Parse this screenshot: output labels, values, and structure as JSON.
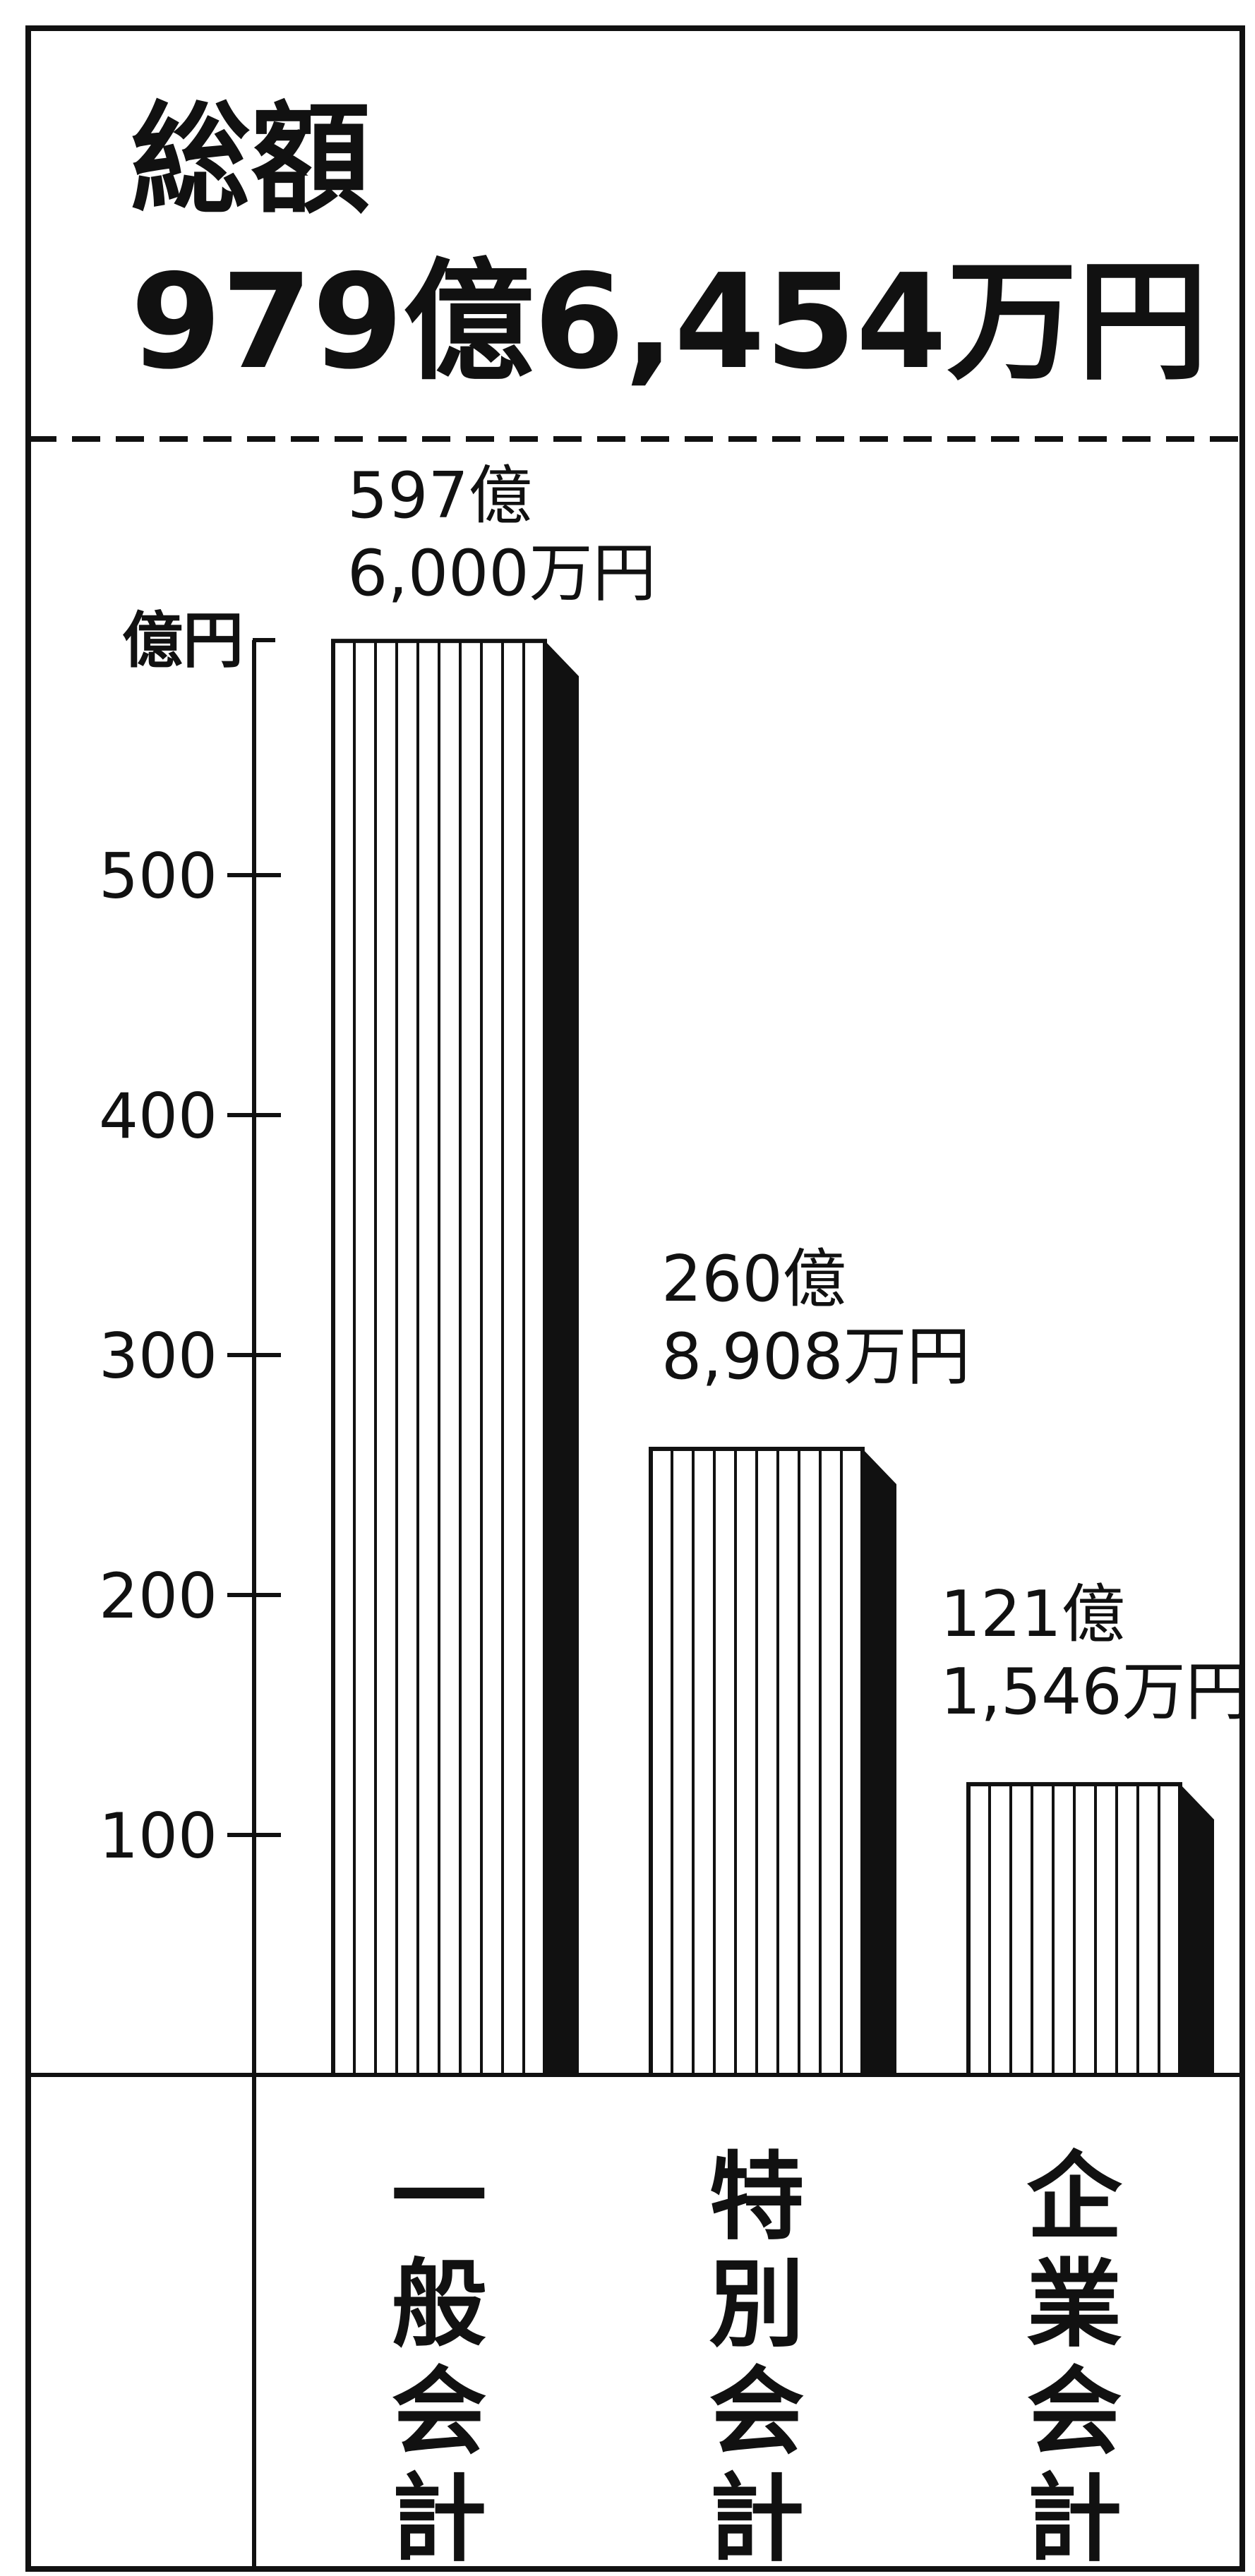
{
  "chart_data": {
    "type": "bar",
    "title": "総額",
    "subtitle": "979億6,454万円",
    "ylabel": "億円",
    "ylim": [
      0,
      600
    ],
    "yticks": [
      100,
      200,
      300,
      400,
      500
    ],
    "categories": [
      "一般会計",
      "特別会計",
      "企業会計"
    ],
    "values": [
      597.6,
      260.89,
      121.15
    ],
    "value_labels": [
      [
        "597億",
        "6,000万円"
      ],
      [
        "260億",
        "8,908万円"
      ],
      [
        "121億",
        "1,546万円"
      ]
    ],
    "grid": false,
    "legend": "none",
    "colors": {
      "bar_fill": "#ffffff",
      "bar_stripe": "#111111",
      "bar_shadow": "#111111",
      "frame": "#111111"
    }
  }
}
